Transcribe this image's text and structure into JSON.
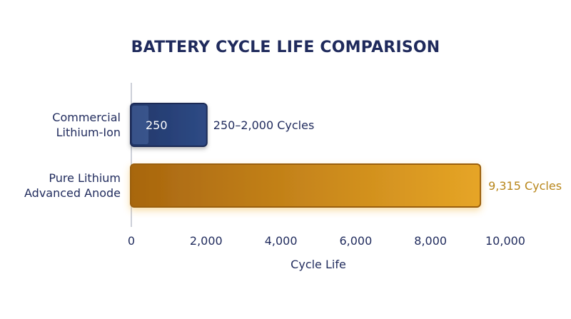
{
  "chart_data": {
    "type": "bar",
    "orientation": "horizontal",
    "title": "BATTERY CYCLE LIFE COMPARISON",
    "xlabel": "Cycle Life",
    "ylabel": "",
    "xlim": [
      0,
      10000
    ],
    "xticks": [
      0,
      2000,
      4000,
      6000,
      8000,
      10000
    ],
    "xtick_labels": [
      "0",
      "2,000",
      "4,000",
      "6,000",
      "8,000",
      "10,000"
    ],
    "grid": false,
    "categories": [
      [
        "Commercial",
        "Lithium-Ion"
      ],
      [
        "Pure Lithium",
        "Advanced Anode"
      ]
    ],
    "bars": [
      {
        "range": [
          250,
          2000
        ],
        "inner_label": "250",
        "value_label": "250–2,000 Cycles",
        "color": "#1f3a6e"
      },
      {
        "range": [
          0,
          9315
        ],
        "value_label": "9,315 Cycles",
        "color": "#d4921c"
      }
    ]
  }
}
